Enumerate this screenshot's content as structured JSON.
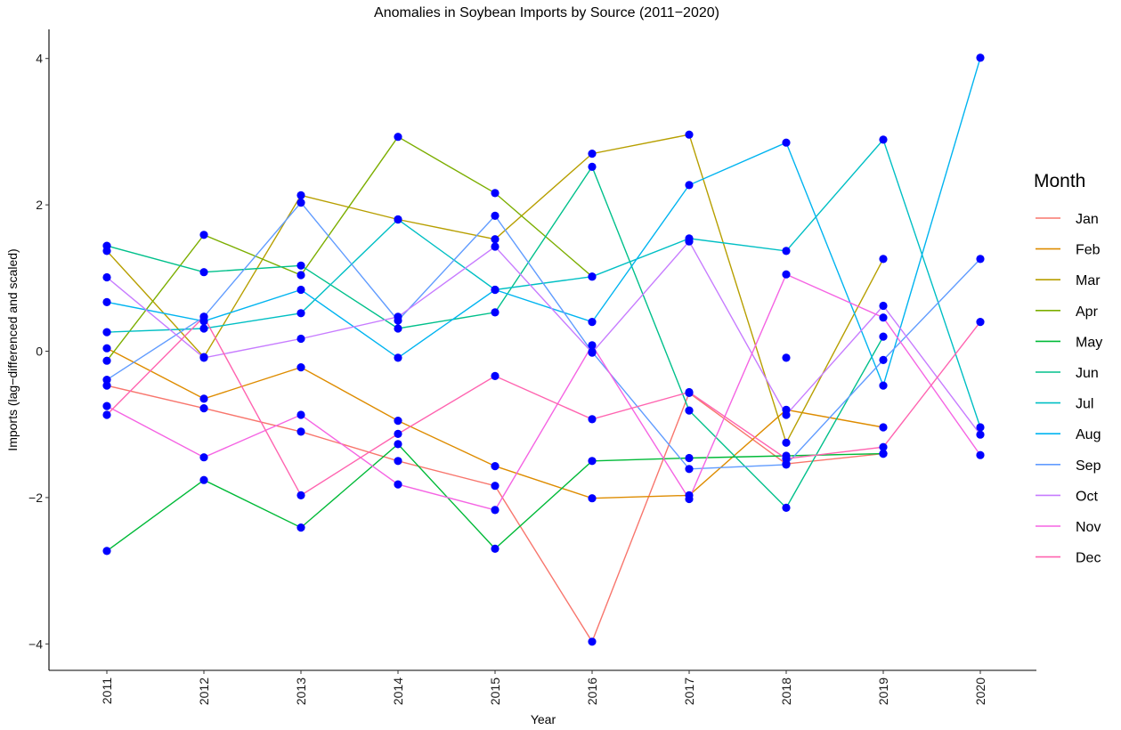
{
  "chart_data": {
    "type": "line",
    "title": "Anomalies in Soybean Imports by Source (2011−2020)",
    "xlabel": "Year",
    "ylabel": "Imports (lag−differenced and scaled)",
    "x": [
      2011,
      2012,
      2013,
      2014,
      2015,
      2016,
      2017,
      2018,
      2019,
      2020
    ],
    "x_tick_labels": [
      "2011",
      "2012",
      "2013",
      "2014",
      "2015",
      "2016",
      "2017",
      "2018",
      "2019",
      "2020"
    ],
    "ylim": [
      -4.4,
      4.4
    ],
    "y_ticks": [
      4,
      2,
      0,
      -2,
      -4
    ],
    "y_tick_labels": [
      "4",
      "2",
      "0",
      "−2",
      "−4"
    ],
    "grid": false,
    "legend_title": "Month",
    "legend_position": "right",
    "point_color": "#0000ff",
    "series": [
      {
        "name": "Jan",
        "color": "#F8766D",
        "values": [
          -0.47,
          -0.78,
          -1.1,
          -1.5,
          -1.84,
          -3.97,
          -0.57,
          -1.54,
          -1.4,
          null
        ]
      },
      {
        "name": "Feb",
        "color": "#DE8C00",
        "values": [
          0.04,
          -0.65,
          -0.22,
          -0.95,
          -1.57,
          -2.01,
          -1.97,
          -0.8,
          -1.04,
          null
        ]
      },
      {
        "name": "Mar",
        "color": "#B79F00",
        "values": [
          1.37,
          -0.08,
          2.13,
          1.8,
          1.53,
          2.7,
          2.96,
          -1.25,
          1.26,
          null
        ]
      },
      {
        "name": "Apr",
        "color": "#7CAE00",
        "values": [
          -0.13,
          1.59,
          1.04,
          2.93,
          2.16,
          1.02,
          null,
          -0.09,
          null,
          null
        ]
      },
      {
        "name": "May",
        "color": "#00BA38",
        "values": [
          -2.73,
          -1.76,
          -2.41,
          -1.27,
          -2.7,
          -1.5,
          -1.46,
          -1.43,
          -1.4,
          null
        ]
      },
      {
        "name": "Jun",
        "color": "#00C08B",
        "values": [
          1.44,
          1.08,
          1.17,
          0.31,
          0.53,
          2.52,
          -0.81,
          -2.14,
          0.2,
          null
        ]
      },
      {
        "name": "Jul",
        "color": "#00BFC4",
        "values": [
          0.26,
          0.31,
          0.52,
          1.8,
          0.84,
          1.02,
          1.54,
          1.37,
          2.89,
          -1.04
        ]
      },
      {
        "name": "Aug",
        "color": "#00B4F0",
        "values": [
          0.67,
          0.41,
          0.84,
          -0.09,
          0.84,
          0.4,
          2.27,
          2.85,
          -0.47,
          4.01
        ]
      },
      {
        "name": "Sep",
        "color": "#619CFF",
        "values": [
          -0.39,
          0.47,
          2.03,
          0.42,
          1.85,
          -0.01,
          -1.61,
          -1.55,
          -0.12,
          1.26
        ]
      },
      {
        "name": "Oct",
        "color": "#C77CFF",
        "values": [
          1.01,
          -0.09,
          0.17,
          0.47,
          1.43,
          -0.02,
          1.5,
          -0.87,
          0.62,
          -1.14
        ]
      },
      {
        "name": "Nov",
        "color": "#F564E3",
        "values": [
          -0.75,
          -1.45,
          -0.87,
          -1.82,
          -2.17,
          0.08,
          -2.02,
          1.05,
          0.46,
          -1.42
        ]
      },
      {
        "name": "Dec",
        "color": "#FF64B0",
        "values": [
          -0.87,
          0.47,
          -1.97,
          -1.13,
          -0.34,
          -0.93,
          -0.56,
          -1.47,
          -1.31,
          0.4
        ]
      }
    ]
  }
}
